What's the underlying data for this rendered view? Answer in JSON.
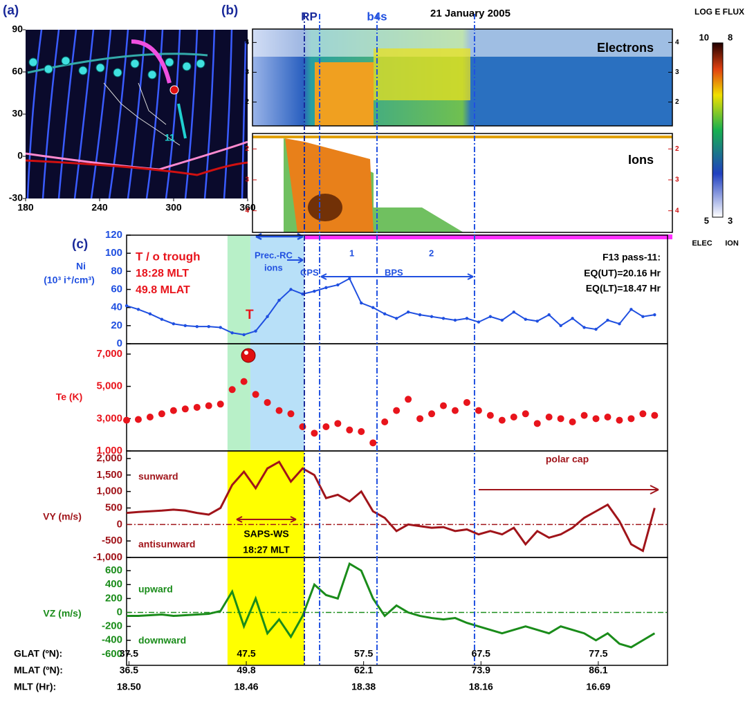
{
  "chart_data": [
    {
      "type": "map",
      "label": "(a)",
      "xlim": [
        180,
        360
      ],
      "xticks": [
        180,
        240,
        300,
        360
      ],
      "ylim": [
        -30,
        90
      ],
      "yticks": [
        -30,
        0,
        30,
        60,
        90
      ],
      "annotations": [
        "11"
      ]
    },
    {
      "type": "spectrogram",
      "label": "(b)",
      "title": "21 January 2005",
      "markers": [
        "RP",
        "b4s"
      ],
      "panels": [
        "Electrons",
        "Ions"
      ],
      "electron_ylim": [
        1.2,
        4.45
      ],
      "electron_yticks": [
        2,
        3,
        4
      ],
      "ion_ylim": [
        1.5,
        4.7
      ],
      "ion_yticks": [
        2,
        3,
        4
      ],
      "ion_inverted": true,
      "colorbar": {
        "title": "LOG E FLUX",
        "elec_range": [
          5,
          10
        ],
        "ion_range": [
          3,
          8
        ],
        "elec_label": "ELEC",
        "ion_label": "ION"
      }
    },
    {
      "type": "line",
      "label": "(c)",
      "ylabel": [
        "Ni",
        "(10³ i⁺/cm³)"
      ],
      "color": "#1f4fe0",
      "xlim": [
        37.3,
        83.4
      ],
      "ylim": [
        0,
        120
      ],
      "yticks": [
        0,
        20,
        40,
        60,
        80,
        100,
        120
      ],
      "trough_band": [
        45.9,
        47.85
      ],
      "precipitation_band": [
        47.85,
        52.45
      ],
      "saps_band": [
        45.9,
        52.45
      ],
      "boundaries": [
        52.45,
        53.75,
        58.64,
        66.95
      ],
      "annotations": [
        "T / o  trough",
        "18:28 MLT",
        "49.8 MLAT",
        "T",
        "Prec.-RC",
        "ions",
        "CPS",
        "1",
        "2",
        "BPS",
        "F13 pass-11:",
        "EQ(UT)=20.16 Hr",
        "EQ(LT)=18.47 Hr"
      ],
      "x": [
        37.3,
        38.3,
        39.3,
        40.3,
        41.3,
        42.3,
        43.3,
        44.3,
        45.3,
        46.3,
        47.3,
        48.3,
        49.3,
        50.3,
        51.3,
        52.3,
        53.3,
        54.3,
        55.3,
        56.3,
        57.3,
        58.3,
        59.3,
        60.3,
        61.3,
        62.3,
        63.3,
        64.3,
        65.3,
        66.3,
        67.3,
        68.3,
        69.3,
        70.3,
        71.3,
        72.3,
        73.3,
        74.3,
        75.3,
        76.3,
        77.3,
        78.3,
        79.3,
        80.3,
        81.3,
        82.3
      ],
      "values": [
        42,
        38,
        33,
        27,
        22,
        20,
        19,
        19,
        18,
        12,
        10,
        14,
        30,
        48,
        60,
        55,
        58,
        62,
        65,
        72,
        45,
        40,
        33,
        28,
        35,
        32,
        30,
        28,
        26,
        28,
        24,
        30,
        26,
        35,
        27,
        25,
        32,
        20,
        28,
        18,
        16,
        26,
        22,
        38,
        30,
        32
      ]
    },
    {
      "type": "scatter",
      "ylabel": "Te (K)",
      "color": "#e8141c",
      "xlim": [
        37.3,
        83.4
      ],
      "ylim": [
        1000,
        7640
      ],
      "yticks": [
        {
          "value": 1000,
          "label": "1,000"
        },
        {
          "value": 3000,
          "label": "3,000"
        },
        {
          "value": 5000,
          "label": "5,000"
        },
        {
          "value": 7000,
          "label": "7,000"
        }
      ],
      "x": [
        37.3,
        38.3,
        39.3,
        40.3,
        41.3,
        42.3,
        43.3,
        44.3,
        45.3,
        46.3,
        47.3,
        48.3,
        49.3,
        50.3,
        51.3,
        52.3,
        53.3,
        54.3,
        55.3,
        56.3,
        57.3,
        58.3,
        59.3,
        60.3,
        61.3,
        62.3,
        63.3,
        64.3,
        65.3,
        66.3,
        67.3,
        68.3,
        69.3,
        70.3,
        71.3,
        72.3,
        73.3,
        74.3,
        75.3,
        76.3,
        77.3,
        78.3,
        79.3,
        80.3,
        81.3,
        82.3
      ],
      "values": [
        2900,
        2950,
        3100,
        3300,
        3500,
        3600,
        3700,
        3800,
        3900,
        4800,
        5300,
        4500,
        4000,
        3500,
        3300,
        2500,
        2100,
        2500,
        2700,
        2300,
        2200,
        1500,
        2800,
        3500,
        4200,
        3000,
        3300,
        3800,
        3500,
        4000,
        3500,
        3200,
        2900,
        3100,
        3300,
        2700,
        3100,
        3000,
        2800,
        3200,
        3000,
        3100,
        2900,
        3000,
        3300,
        3200
      ]
    },
    {
      "type": "line",
      "ylabel": "VY (m/s)",
      "color": "#a0141a",
      "xlim": [
        37.3,
        83.4
      ],
      "ylim": [
        -1000,
        2230
      ],
      "yticks": [
        {
          "value": -1000,
          "label": "-1,000"
        },
        -500,
        0,
        500,
        {
          "value": 1000,
          "label": "1,000"
        },
        {
          "value": 1500,
          "label": "1,500"
        },
        {
          "value": 2000,
          "label": "2,000"
        }
      ],
      "annotations": [
        "sunward",
        "antisunward",
        "SAPS-WS",
        "18:27 MLT",
        "polar cap"
      ],
      "x": [
        37.3,
        38.3,
        39.3,
        40.3,
        41.3,
        42.3,
        43.3,
        44.3,
        45.3,
        46.3,
        47.3,
        48.3,
        49.3,
        50.3,
        51.3,
        52.3,
        53.3,
        54.3,
        55.3,
        56.3,
        57.3,
        58.3,
        59.3,
        60.3,
        61.3,
        62.3,
        63.3,
        64.3,
        65.3,
        66.3,
        67.3,
        68.3,
        69.3,
        70.3,
        71.3,
        72.3,
        73.3,
        74.3,
        75.3,
        76.3,
        77.3,
        78.3,
        79.3,
        80.3,
        81.3,
        82.3
      ],
      "values": [
        350,
        380,
        400,
        420,
        450,
        420,
        350,
        300,
        500,
        1200,
        1600,
        1100,
        1700,
        1900,
        1300,
        1700,
        1500,
        800,
        900,
        700,
        1000,
        400,
        200,
        -200,
        0,
        -50,
        -100,
        -80,
        -200,
        -150,
        -300,
        -200,
        -300,
        -100,
        -600,
        -200,
        -400,
        -300,
        -100,
        200,
        400,
        600,
        100,
        -600,
        -800,
        500
      ]
    },
    {
      "type": "line",
      "ylabel": "VZ (m/s)",
      "color": "#1a8c1a",
      "xlim": [
        37.3,
        83.4
      ],
      "ylim": [
        -760,
        790
      ],
      "yticks": [
        -600,
        -400,
        -200,
        0,
        200,
        400,
        600
      ],
      "annotations": [
        "upward",
        "downward"
      ],
      "x": [
        37.3,
        38.3,
        39.3,
        40.3,
        41.3,
        42.3,
        43.3,
        44.3,
        45.3,
        46.3,
        47.3,
        48.3,
        49.3,
        50.3,
        51.3,
        52.3,
        53.3,
        54.3,
        55.3,
        56.3,
        57.3,
        58.3,
        59.3,
        60.3,
        61.3,
        62.3,
        63.3,
        64.3,
        65.3,
        66.3,
        67.3,
        68.3,
        69.3,
        70.3,
        71.3,
        72.3,
        73.3,
        74.3,
        75.3,
        76.3,
        77.3,
        78.3,
        79.3,
        80.3,
        81.3,
        82.3
      ],
      "values": [
        -50,
        -50,
        -40,
        -30,
        -50,
        -40,
        -30,
        -20,
        20,
        300,
        -200,
        200,
        -300,
        -100,
        -350,
        -50,
        400,
        250,
        200,
        700,
        600,
        200,
        -50,
        100,
        0,
        -50,
        -80,
        -100,
        -80,
        -150,
        -200,
        -250,
        -300,
        -250,
        -200,
        -250,
        -300,
        -200,
        -250,
        -300,
        -400,
        -300,
        -450,
        -500,
        -400,
        -300
      ],
      "xrows": [
        "GLAT (ºN):",
        "MLAT (ºN):",
        "MLT (Hr):"
      ],
      "xticks": [
        37.5,
        47.5,
        57.5,
        67.5,
        77.5
      ],
      "mlat_labels": [
        "36.5",
        "49.8",
        "62.1",
        "73.9",
        "86.1"
      ],
      "mlt_labels": [
        "18.50",
        "18.46",
        "18.38",
        "18.16",
        "16.69"
      ]
    }
  ]
}
